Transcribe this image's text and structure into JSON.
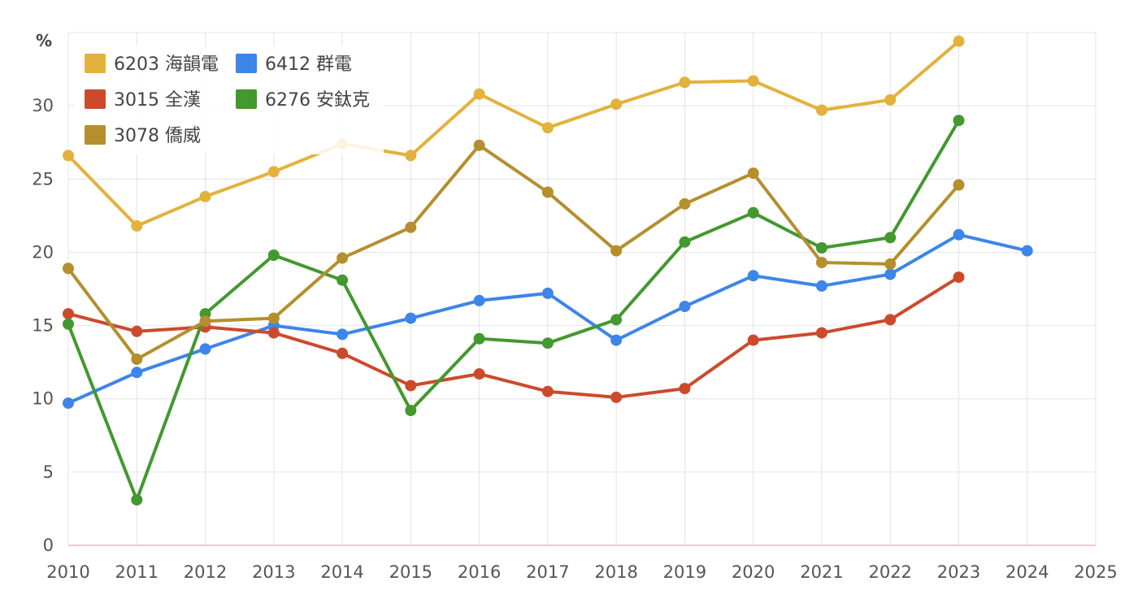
{
  "chart_data": {
    "type": "line",
    "unit_label": "%",
    "x": [
      2010,
      2011,
      2012,
      2013,
      2014,
      2015,
      2016,
      2017,
      2018,
      2019,
      2020,
      2021,
      2022,
      2023,
      2024
    ],
    "x_ticks": [
      "2010",
      "2011",
      "2012",
      "2013",
      "2014",
      "2015",
      "2016",
      "2017",
      "2018",
      "2019",
      "2020",
      "2021",
      "2022",
      "2023",
      "2024",
      "2025"
    ],
    "y_ticks": [
      "0",
      "5",
      "10",
      "15",
      "20",
      "25",
      "30"
    ],
    "xlim": [
      2010,
      2025
    ],
    "ylim": [
      0,
      35
    ],
    "grid": true,
    "legend_position": "top-left",
    "series": [
      {
        "name": "6203 海韻電",
        "color": "#E3B23C",
        "values": [
          26.6,
          21.8,
          23.8,
          25.5,
          27.4,
          26.6,
          30.8,
          28.5,
          30.1,
          31.6,
          31.7,
          29.7,
          30.4,
          34.4,
          null
        ]
      },
      {
        "name": "6412 群電",
        "color": "#3D85E8",
        "values": [
          9.7,
          11.8,
          13.4,
          15.0,
          14.4,
          15.5,
          16.7,
          17.2,
          14.0,
          16.3,
          18.4,
          17.7,
          18.5,
          21.2,
          20.1
        ]
      },
      {
        "name": "3015 全漢",
        "color": "#CC4A2C",
        "values": [
          15.8,
          14.6,
          14.9,
          14.5,
          13.1,
          10.9,
          11.7,
          10.5,
          10.1,
          10.7,
          14.0,
          14.5,
          15.4,
          18.3,
          null
        ]
      },
      {
        "name": "6276 安鈦克",
        "color": "#43982F",
        "values": [
          15.1,
          3.1,
          15.8,
          19.8,
          18.1,
          9.2,
          14.1,
          13.8,
          15.4,
          20.7,
          22.7,
          20.3,
          21.0,
          29.0,
          null
        ]
      },
      {
        "name": "3078 僑威",
        "color": "#B58F2E",
        "values": [
          18.9,
          12.7,
          15.3,
          15.5,
          19.6,
          21.7,
          27.3,
          24.1,
          20.1,
          23.3,
          25.4,
          19.3,
          19.2,
          24.6,
          null
        ]
      }
    ]
  }
}
